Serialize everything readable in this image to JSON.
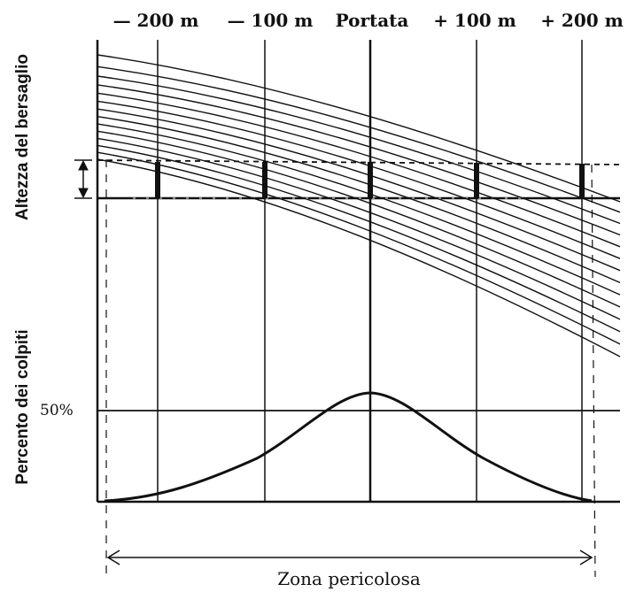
{
  "labels": {
    "minus_200": "— 200 m",
    "minus_100": "— 100 m",
    "range": "Portata",
    "plus_100": "+ 100 m",
    "plus_200": "+ 200 m",
    "target_height": "Altezza del bersaglio",
    "hit_percent": "Percento dei colpiti",
    "fifty_percent": "50%",
    "danger_zone": "Zona pericolosa"
  },
  "chart_data": {
    "type": "line",
    "x_ticks": [
      "— 200 m",
      "— 100 m",
      "Portata",
      "+ 100 m",
      "+ 200 m"
    ],
    "x": [
      -200,
      -100,
      0,
      100,
      200
    ],
    "hit_distribution": {
      "y_label": "Percento dei colpiti",
      "reference": "50%",
      "shape": "bell curve peaking at Portata",
      "y_at_ticks": [
        2,
        15,
        53,
        15,
        2
      ]
    },
    "trajectory_count": 14,
    "colors": {
      "ink": "#111111",
      "background": "#ffffff"
    }
  }
}
